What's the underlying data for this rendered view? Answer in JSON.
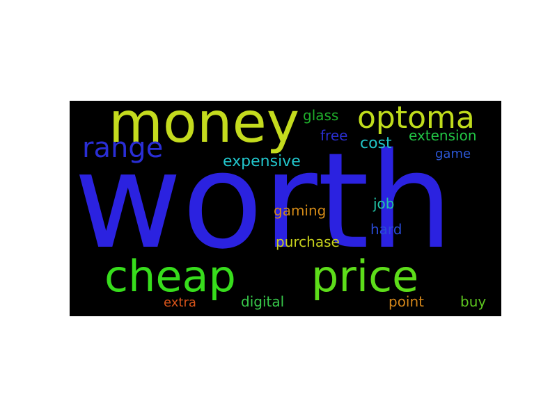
{
  "word_cloud": {
    "background": "#000000",
    "words": [
      {
        "id": "worth",
        "text": "worth",
        "color": "#2b22e0"
      },
      {
        "id": "money",
        "text": "money",
        "color": "#c4db1e"
      },
      {
        "id": "optoma",
        "text": "optoma",
        "color": "#c0dc1c"
      },
      {
        "id": "range",
        "text": "range",
        "color": "#2a2ed6"
      },
      {
        "id": "cheap",
        "text": "cheap",
        "color": "#37dd1c"
      },
      {
        "id": "price",
        "text": "price",
        "color": "#5ddd1a"
      },
      {
        "id": "glass",
        "text": "glass",
        "color": "#1fae2b"
      },
      {
        "id": "free",
        "text": "free",
        "color": "#2a2ecf"
      },
      {
        "id": "cost",
        "text": "cost",
        "color": "#22c6c9"
      },
      {
        "id": "extension",
        "text": "extension",
        "color": "#22c645"
      },
      {
        "id": "expensive",
        "text": "expensive",
        "color": "#22c6cc"
      },
      {
        "id": "game",
        "text": "game",
        "color": "#2c57d6"
      },
      {
        "id": "gaming",
        "text": "gaming",
        "color": "#d38a17"
      },
      {
        "id": "job",
        "text": "job",
        "color": "#22c6a8"
      },
      {
        "id": "hard",
        "text": "hard",
        "color": "#2a4ad6"
      },
      {
        "id": "purchase",
        "text": "purchase",
        "color": "#c9d21c"
      },
      {
        "id": "extra",
        "text": "extra",
        "color": "#d9541a"
      },
      {
        "id": "digital",
        "text": "digital",
        "color": "#38c94a"
      },
      {
        "id": "point",
        "text": "point",
        "color": "#d3861a"
      },
      {
        "id": "buy",
        "text": "buy",
        "color": "#5dc61f"
      }
    ]
  }
}
